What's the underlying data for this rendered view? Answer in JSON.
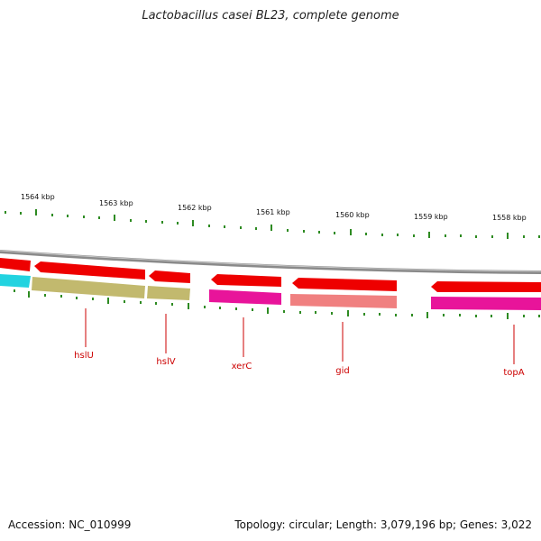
{
  "title": "Lactobacillus casei BL23, complete genome",
  "footer": {
    "accession": "Accession: NC_010999",
    "summary": "Topology: circular; Length: 3,079,196 bp; Genes: 3,022"
  },
  "scale_labels": [
    "1564 kbp",
    "1563 kbp",
    "1562 kbp",
    "1561 kbp",
    "1560 kbp",
    "1559 kbp",
    "1558 kbp"
  ],
  "gene_labels": [
    "hslU",
    "hslV",
    "xerC",
    "gid",
    "topA"
  ],
  "colors": {
    "backbone": "#8a8a8a",
    "gene_arrow": "#ee0000",
    "ticks": "#2e8b22",
    "label": "#cc0000",
    "cyan": "#22d3e0",
    "olive": "#c2b96e",
    "magenta": "#e8149a",
    "salmon": "#f08080"
  }
}
